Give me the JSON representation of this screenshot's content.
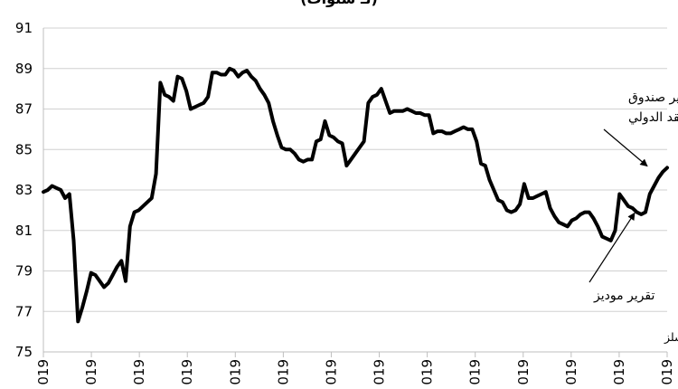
{
  "chart_data": {
    "type": "line",
    "title_fragment": "(لـ سنوات)",
    "ylim": [
      75,
      91
    ],
    "y_ticks": [
      "91",
      "89",
      "87",
      "85",
      "83",
      "81",
      "79",
      "77",
      "75"
    ],
    "x_tick_labels": [
      "019",
      "019",
      "019",
      "019",
      "019",
      "019",
      "019",
      "019",
      "019",
      "019",
      "019",
      "019",
      "019",
      "019"
    ],
    "grid": true,
    "series": [
      {
        "color": "#000000",
        "values": [
          82.9,
          83.0,
          83.2,
          83.1,
          83.0,
          82.6,
          82.8,
          80.5,
          76.5,
          77.2,
          78.0,
          78.9,
          78.8,
          78.5,
          78.2,
          78.4,
          78.8,
          79.2,
          79.5,
          78.5,
          81.2,
          81.9,
          82.0,
          82.2,
          82.4,
          82.6,
          83.8,
          88.3,
          87.7,
          87.6,
          87.4,
          88.6,
          88.5,
          87.9,
          87.0,
          87.1,
          87.2,
          87.3,
          87.6,
          88.8,
          88.8,
          88.7,
          88.7,
          89.0,
          88.9,
          88.6,
          88.8,
          88.9,
          88.6,
          88.4,
          88.0,
          87.7,
          87.3,
          86.4,
          85.7,
          85.1,
          85.0,
          85.0,
          84.8,
          84.5,
          84.4,
          84.5,
          84.5,
          85.4,
          85.5,
          86.4,
          85.7,
          85.6,
          85.4,
          85.3,
          84.2,
          84.5,
          84.8,
          85.1,
          85.4,
          87.3,
          87.6,
          87.7,
          88.0,
          87.4,
          86.8,
          86.9,
          86.9,
          86.9,
          87.0,
          86.9,
          86.8,
          86.8,
          86.7,
          86.7,
          85.8,
          85.9,
          85.9,
          85.8,
          85.8,
          85.9,
          86.0,
          86.1,
          86.0,
          86.0,
          85.4,
          84.3,
          84.2,
          83.5,
          83.0,
          82.5,
          82.4,
          82.0,
          81.9,
          82.0,
          82.3,
          83.3,
          82.6,
          82.6,
          82.7,
          82.8,
          82.9,
          82.1,
          81.7,
          81.4,
          81.3,
          81.2,
          81.5,
          81.6,
          81.8,
          81.9,
          81.9,
          81.6,
          81.2,
          80.7,
          80.6,
          80.5,
          81.0,
          82.8,
          82.5,
          82.2,
          82.1,
          81.9,
          81.8,
          81.9,
          82.8,
          83.2,
          83.6,
          83.9,
          84.1
        ]
      }
    ],
    "annotations": [
      {
        "text_line1": "تقرير صندوق",
        "text_line2": "النقد الدولي",
        "points_to_value": 84.0
      },
      {
        "text_line1": "تقرير موديز",
        "points_to_value": 82.4
      }
    ],
    "source": "بروفسور جاسم عجاقة | مصدر : رويال فيننشلز"
  }
}
